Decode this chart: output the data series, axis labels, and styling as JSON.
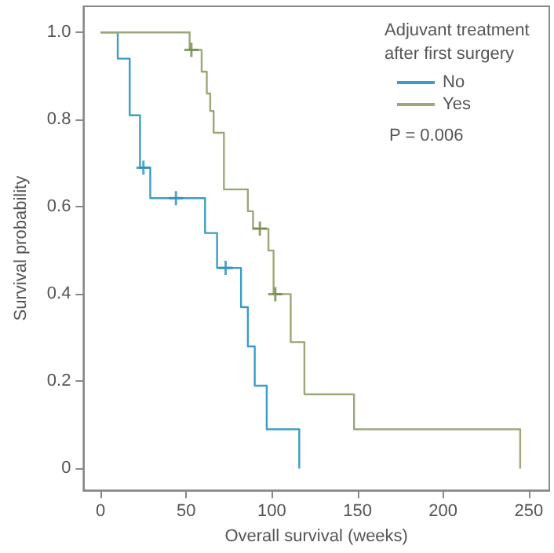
{
  "chart_data": {
    "type": "step",
    "xlabel": "Overall survival (weeks)",
    "ylabel": "Survival probability",
    "legend_title": "Adjuvant treatment after first surgery",
    "annotations": [
      "P = 0.006"
    ],
    "series": [
      {
        "name": "No",
        "color": "#3a9dc6",
        "x": [
          0,
          10,
          17,
          23,
          29,
          61,
          68,
          82,
          86,
          90,
          97,
          116
        ],
        "values": [
          1.0,
          0.94,
          0.81,
          0.69,
          0.62,
          0.54,
          0.46,
          0.37,
          0.28,
          0.19,
          0.09,
          0
        ]
      },
      {
        "name": "Yes",
        "color": "#9aa878",
        "x": [
          0,
          52,
          59,
          62,
          64,
          66,
          72,
          86,
          89,
          98,
          101,
          111,
          119,
          148,
          245
        ],
        "values": [
          1.0,
          0.96,
          0.91,
          0.86,
          0.82,
          0.77,
          0.64,
          0.59,
          0.55,
          0.5,
          0.4,
          0.29,
          0.17,
          0.09,
          0
        ]
      },
      {
        "type": "scatter",
        "marker": "cross",
        "color": "#2a8fba",
        "x": [
          25,
          44,
          73
        ],
        "values": [
          0.69,
          0.62,
          0.46
        ]
      },
      {
        "type": "scatter",
        "marker": "cross",
        "color": "#6f8a45",
        "x": [
          53,
          93,
          102
        ],
        "values": [
          0.96,
          0.55,
          0.4
        ]
      }
    ],
    "xlim": [
      -10,
      262
    ],
    "xticks": [
      0,
      50,
      100,
      150,
      200,
      250
    ],
    "ylim": [
      -0.05,
      1.06
    ],
    "yticks": [
      0,
      0.2,
      0.4,
      0.6,
      0.8,
      {
        "value": 1,
        "label": "1.0"
      }
    ],
    "grid": false,
    "legend": "top right",
    "line_style": "solid"
  }
}
